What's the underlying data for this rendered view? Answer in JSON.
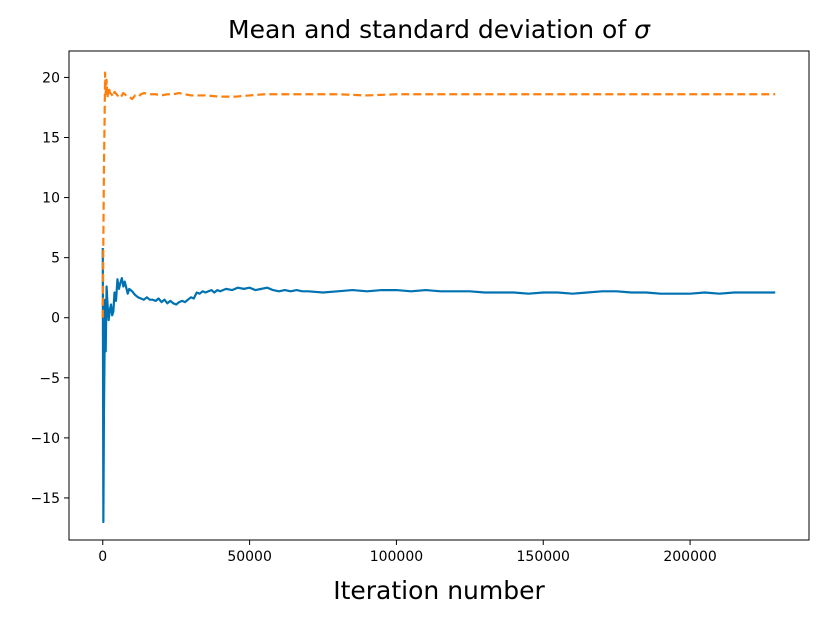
{
  "chart_data": {
    "type": "line",
    "title": "Mean and standard deviation of",
    "title_symbol": "σ",
    "xlabel": "Iteration number",
    "ylabel": "",
    "xlim": [
      -11500,
      240500
    ],
    "ylim": [
      -18.5,
      22.2
    ],
    "xticks": [
      0,
      50000,
      100000,
      150000,
      200000
    ],
    "xtick_labels": [
      "0",
      "50000",
      "100000",
      "150000",
      "200000"
    ],
    "yticks": [
      -15,
      -10,
      -5,
      0,
      5,
      10,
      15,
      20
    ],
    "ytick_labels": [
      "−15",
      "−10",
      "−5",
      "0",
      "5",
      "10",
      "15",
      "20"
    ],
    "grid": false,
    "series": [
      {
        "name": "mean",
        "color": "#0072b2",
        "style": "solid",
        "x": [
          0,
          200,
          400,
          600,
          800,
          1000,
          1300,
          1600,
          2000,
          2400,
          2800,
          3200,
          3600,
          4000,
          4500,
          5000,
          5500,
          6000,
          6500,
          7000,
          7500,
          8000,
          8500,
          9000,
          9500,
          10000,
          11000,
          12000,
          13000,
          14000,
          15000,
          16000,
          17000,
          18000,
          19000,
          20000,
          21000,
          22000,
          23000,
          24000,
          25000,
          26000,
          27000,
          28000,
          29000,
          30000,
          31000,
          32000,
          33000,
          34000,
          35000,
          36000,
          37000,
          38000,
          39000,
          40000,
          42000,
          44000,
          46000,
          48000,
          50000,
          52000,
          54000,
          56000,
          58000,
          60000,
          62000,
          64000,
          66000,
          68000,
          70000,
          75000,
          80000,
          85000,
          90000,
          95000,
          100000,
          105000,
          110000,
          115000,
          120000,
          125000,
          130000,
          135000,
          140000,
          145000,
          150000,
          155000,
          160000,
          165000,
          170000,
          175000,
          180000,
          185000,
          190000,
          195000,
          200000,
          205000,
          210000,
          215000,
          220000,
          225000,
          229000
        ],
        "values": [
          5.8,
          -17.0,
          -8.0,
          -3.2,
          1.5,
          -2.8,
          2.6,
          1.2,
          -0.2,
          0.6,
          1.1,
          0.2,
          0.5,
          2.1,
          1.4,
          3.2,
          2.4,
          2.9,
          3.3,
          2.6,
          3.0,
          2.5,
          2.0,
          2.4,
          2.3,
          2.2,
          1.9,
          1.7,
          1.6,
          1.5,
          1.7,
          1.5,
          1.5,
          1.4,
          1.6,
          1.3,
          1.5,
          1.2,
          1.4,
          1.2,
          1.1,
          1.3,
          1.4,
          1.3,
          1.5,
          1.7,
          1.6,
          2.1,
          2.0,
          2.2,
          2.1,
          2.2,
          2.3,
          2.1,
          2.3,
          2.2,
          2.4,
          2.3,
          2.5,
          2.4,
          2.5,
          2.3,
          2.4,
          2.5,
          2.3,
          2.2,
          2.3,
          2.2,
          2.3,
          2.2,
          2.2,
          2.1,
          2.2,
          2.3,
          2.2,
          2.3,
          2.3,
          2.2,
          2.3,
          2.2,
          2.2,
          2.2,
          2.1,
          2.1,
          2.1,
          2.0,
          2.1,
          2.1,
          2.0,
          2.1,
          2.2,
          2.2,
          2.1,
          2.1,
          2.0,
          2.0,
          2.0,
          2.1,
          2.0,
          2.1,
          2.1,
          2.1,
          2.1
        ]
      },
      {
        "name": "standard deviation",
        "color": "#ff7f0e",
        "style": "dashed",
        "x": [
          0,
          200,
          400,
          600,
          800,
          1000,
          1300,
          1600,
          2000,
          2500,
          3000,
          3500,
          4000,
          5000,
          6000,
          7000,
          8000,
          9000,
          10000,
          11000,
          12000,
          13000,
          14000,
          16000,
          18000,
          20000,
          22000,
          24000,
          26000,
          28000,
          30000,
          35000,
          40000,
          45000,
          50000,
          55000,
          60000,
          70000,
          80000,
          90000,
          100000,
          110000,
          120000,
          130000,
          140000,
          150000,
          160000,
          170000,
          180000,
          190000,
          200000,
          210000,
          220000,
          229000
        ],
        "values": [
          0.0,
          6.5,
          12.5,
          16.0,
          20.4,
          18.6,
          19.8,
          18.3,
          19.2,
          18.7,
          18.6,
          18.4,
          18.8,
          18.5,
          18.3,
          18.7,
          18.5,
          18.4,
          18.2,
          18.5,
          18.4,
          18.6,
          18.7,
          18.6,
          18.6,
          18.5,
          18.6,
          18.6,
          18.7,
          18.6,
          18.5,
          18.5,
          18.4,
          18.4,
          18.5,
          18.6,
          18.6,
          18.6,
          18.6,
          18.5,
          18.6,
          18.6,
          18.6,
          18.6,
          18.6,
          18.6,
          18.6,
          18.6,
          18.6,
          18.6,
          18.6,
          18.6,
          18.6,
          18.6
        ]
      }
    ]
  }
}
